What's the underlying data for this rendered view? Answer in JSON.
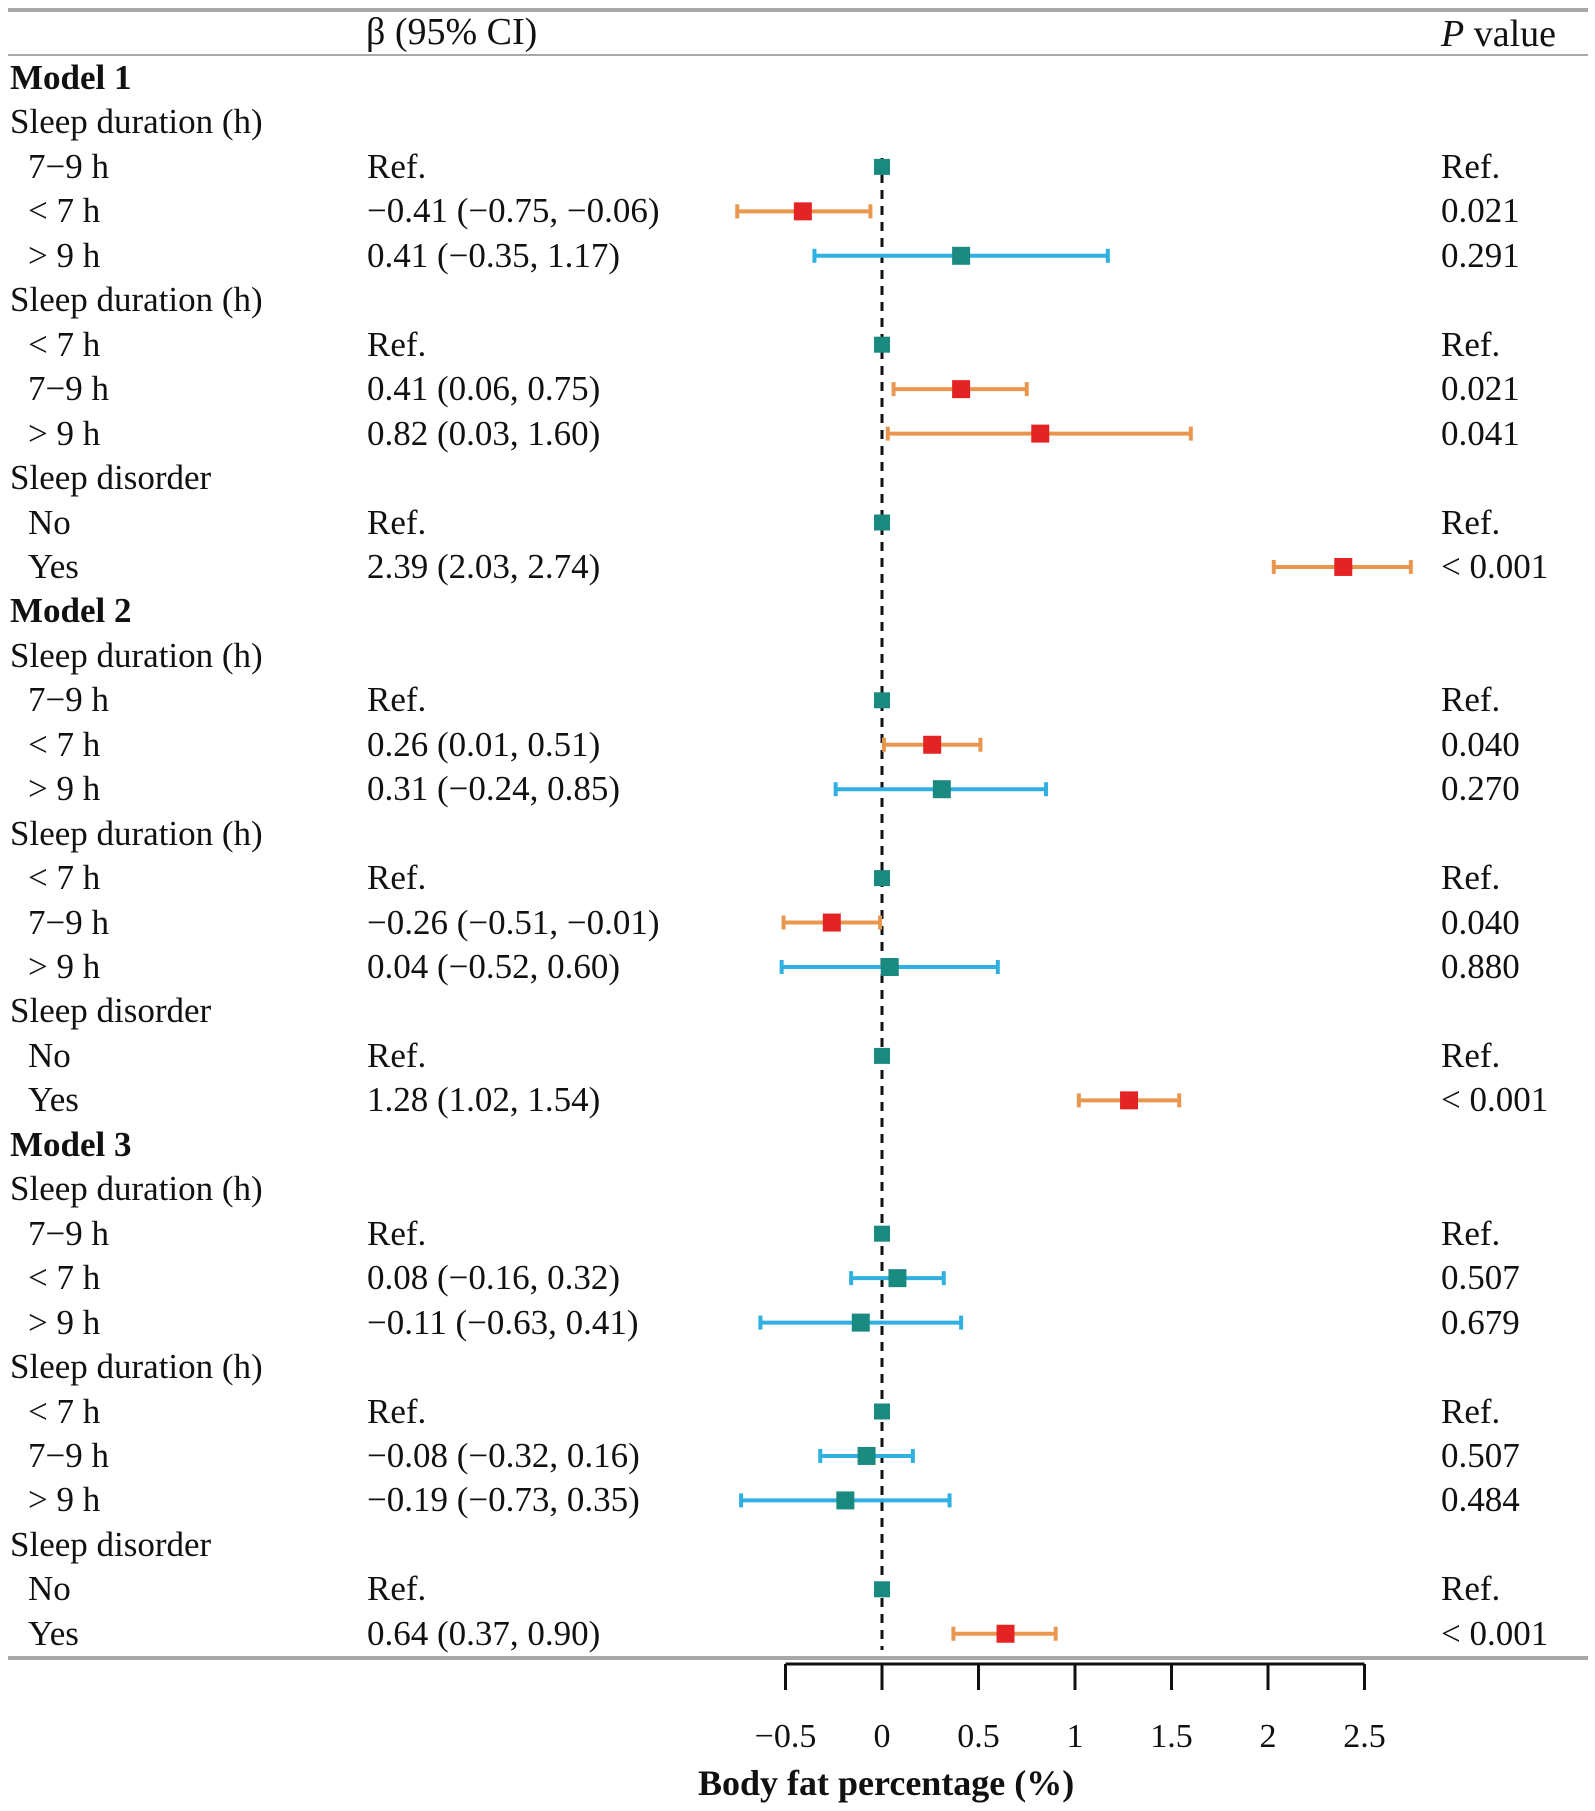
{
  "header": {
    "beta_col": "β (95% CI)",
    "p_col_italic": "P",
    "p_col_rest": " value"
  },
  "colors": {
    "significant_ci": "#e9974f",
    "nonsignificant_ci": "#2fb0e0",
    "significant_point": "#e42424",
    "nonsignificant_point": "#1a8a80",
    "reference_point": "#1a8a80",
    "zero_line": "#111111",
    "rules": "#a8a8a8"
  },
  "chart_data": {
    "type": "forest",
    "xlabel": "Body fat percentage (%)",
    "xlim": [
      -0.5,
      2.5
    ],
    "xticks": [
      -0.5,
      0,
      0.5,
      1,
      1.5,
      2,
      2.5
    ],
    "xtick_labels": [
      "−0.5",
      "0",
      "0.5",
      "1",
      "1.5",
      "2",
      "2.5"
    ],
    "reference_line": 0,
    "rows": [
      {
        "kind": "model",
        "label": "Model 1"
      },
      {
        "kind": "group",
        "label": "Sleep duration (h)"
      },
      {
        "kind": "item",
        "label": "7−9 h",
        "ci_text": "Ref.",
        "p": "Ref.",
        "ref": true
      },
      {
        "kind": "item",
        "label": "< 7 h",
        "ci_text": "−0.41 (−0.75, −0.06)",
        "p": "0.021",
        "beta": -0.41,
        "lo": -0.75,
        "hi": -0.06,
        "significant": true
      },
      {
        "kind": "item",
        "label": "> 9 h",
        "ci_text": "0.41 (−0.35, 1.17)",
        "p": "0.291",
        "beta": 0.41,
        "lo": -0.35,
        "hi": 1.17,
        "significant": false
      },
      {
        "kind": "group",
        "label": "Sleep duration (h)"
      },
      {
        "kind": "item",
        "label": "< 7 h",
        "ci_text": "Ref.",
        "p": "Ref.",
        "ref": true
      },
      {
        "kind": "item",
        "label": "7−9 h",
        "ci_text": "0.41 (0.06, 0.75)",
        "p": "0.021",
        "beta": 0.41,
        "lo": 0.06,
        "hi": 0.75,
        "significant": true
      },
      {
        "kind": "item",
        "label": "> 9 h",
        "ci_text": "0.82 (0.03, 1.60)",
        "p": "0.041",
        "beta": 0.82,
        "lo": 0.03,
        "hi": 1.6,
        "significant": true
      },
      {
        "kind": "group",
        "label": "Sleep disorder"
      },
      {
        "kind": "item",
        "label": "No",
        "ci_text": "Ref.",
        "p": "Ref.",
        "ref": true
      },
      {
        "kind": "item",
        "label": "Yes",
        "ci_text": "2.39 (2.03, 2.74)",
        "p": "< 0.001",
        "beta": 2.39,
        "lo": 2.03,
        "hi": 2.74,
        "significant": true
      },
      {
        "kind": "model",
        "label": "Model 2"
      },
      {
        "kind": "group",
        "label": "Sleep duration (h)"
      },
      {
        "kind": "item",
        "label": "7−9 h",
        "ci_text": "Ref.",
        "p": "Ref.",
        "ref": true
      },
      {
        "kind": "item",
        "label": "< 7 h",
        "ci_text": "0.26 (0.01, 0.51)",
        "p": "0.040",
        "beta": 0.26,
        "lo": 0.01,
        "hi": 0.51,
        "significant": true
      },
      {
        "kind": "item",
        "label": "> 9 h",
        "ci_text": "0.31 (−0.24, 0.85)",
        "p": "0.270",
        "beta": 0.31,
        "lo": -0.24,
        "hi": 0.85,
        "significant": false
      },
      {
        "kind": "group",
        "label": "Sleep duration (h)"
      },
      {
        "kind": "item",
        "label": "< 7 h",
        "ci_text": "Ref.",
        "p": "Ref.",
        "ref": true
      },
      {
        "kind": "item",
        "label": "7−9 h",
        "ci_text": "−0.26 (−0.51, −0.01)",
        "p": "0.040",
        "beta": -0.26,
        "lo": -0.51,
        "hi": -0.01,
        "significant": true
      },
      {
        "kind": "item",
        "label": "> 9 h",
        "ci_text": "0.04 (−0.52, 0.60)",
        "p": "0.880",
        "beta": 0.04,
        "lo": -0.52,
        "hi": 0.6,
        "significant": false
      },
      {
        "kind": "group",
        "label": "Sleep disorder"
      },
      {
        "kind": "item",
        "label": "No",
        "ci_text": "Ref.",
        "p": "Ref.",
        "ref": true
      },
      {
        "kind": "item",
        "label": "Yes",
        "ci_text": "1.28 (1.02, 1.54)",
        "p": "< 0.001",
        "beta": 1.28,
        "lo": 1.02,
        "hi": 1.54,
        "significant": true
      },
      {
        "kind": "model",
        "label": "Model 3"
      },
      {
        "kind": "group",
        "label": "Sleep duration (h)"
      },
      {
        "kind": "item",
        "label": "7−9 h",
        "ci_text": "Ref.",
        "p": "Ref.",
        "ref": true
      },
      {
        "kind": "item",
        "label": "< 7 h",
        "ci_text": "0.08 (−0.16, 0.32)",
        "p": "0.507",
        "beta": 0.08,
        "lo": -0.16,
        "hi": 0.32,
        "significant": false
      },
      {
        "kind": "item",
        "label": "> 9 h",
        "ci_text": "−0.11 (−0.63, 0.41)",
        "p": "0.679",
        "beta": -0.11,
        "lo": -0.63,
        "hi": 0.41,
        "significant": false
      },
      {
        "kind": "group",
        "label": "Sleep duration (h)"
      },
      {
        "kind": "item",
        "label": "< 7 h",
        "ci_text": "Ref.",
        "p": "Ref.",
        "ref": true
      },
      {
        "kind": "item",
        "label": "7−9 h",
        "ci_text": "−0.08 (−0.32, 0.16)",
        "p": "0.507",
        "beta": -0.08,
        "lo": -0.32,
        "hi": 0.16,
        "significant": false
      },
      {
        "kind": "item",
        "label": "> 9 h",
        "ci_text": "−0.19 (−0.73, 0.35)",
        "p": "0.484",
        "beta": -0.19,
        "lo": -0.73,
        "hi": 0.35,
        "significant": false
      },
      {
        "kind": "group",
        "label": "Sleep disorder"
      },
      {
        "kind": "item",
        "label": "No",
        "ci_text": "Ref.",
        "p": "Ref.",
        "ref": true
      },
      {
        "kind": "item",
        "label": "Yes",
        "ci_text": "0.64 (0.37, 0.90)",
        "p": "< 0.001",
        "beta": 0.64,
        "lo": 0.37,
        "hi": 0.9,
        "significant": true
      }
    ]
  }
}
